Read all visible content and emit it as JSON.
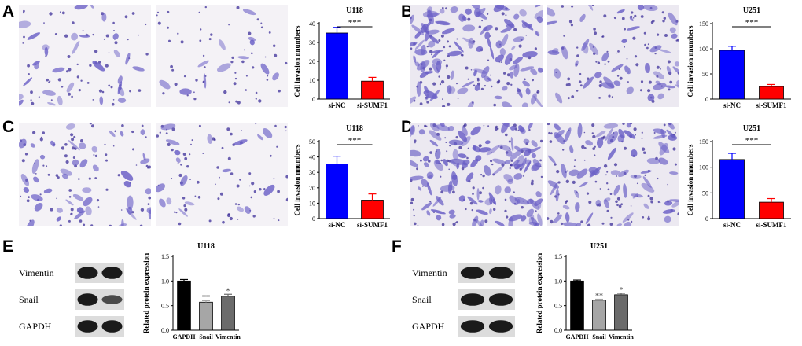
{
  "panels": {
    "A": "A",
    "B": "B",
    "C": "C",
    "D": "D",
    "E": "E",
    "F": "F"
  },
  "invasion_charts": [
    {
      "panel": "A",
      "title": "U118",
      "ylabel": "Cell invasion nnumbers",
      "ylim": [
        0,
        40
      ],
      "ticks": [
        0,
        10,
        20,
        30,
        40
      ],
      "categories": [
        "si-NC",
        "si-SUMF1"
      ],
      "values": [
        35,
        9.5
      ],
      "errors": [
        3,
        2
      ],
      "colors": [
        "#0000ff",
        "#ff0000"
      ],
      "sig": "***"
    },
    {
      "panel": "B",
      "title": "U251",
      "ylabel": "Cell invasion nnumbers",
      "ylim": [
        0,
        150
      ],
      "ticks": [
        0,
        50,
        100,
        150
      ],
      "categories": [
        "si-NC",
        "si-SUMF1"
      ],
      "values": [
        97,
        25
      ],
      "errors": [
        8,
        4
      ],
      "colors": [
        "#0000ff",
        "#ff0000"
      ],
      "sig": "***"
    },
    {
      "panel": "C",
      "title": "U118",
      "ylabel": "Cell invasion nnumbers",
      "ylim": [
        0,
        50
      ],
      "ticks": [
        0,
        10,
        20,
        30,
        40,
        50
      ],
      "categories": [
        "si-NC",
        "si-SUMF1"
      ],
      "values": [
        35.5,
        12
      ],
      "errors": [
        5,
        4
      ],
      "colors": [
        "#0000ff",
        "#ff0000"
      ],
      "sig": "***"
    },
    {
      "panel": "D",
      "title": "U251",
      "ylabel": "Cell invasion nnumbers",
      "ylim": [
        0,
        150
      ],
      "ticks": [
        0,
        50,
        100,
        150
      ],
      "categories": [
        "si-NC",
        "si-SUMF1"
      ],
      "values": [
        115,
        32
      ],
      "errors": [
        12,
        7
      ],
      "colors": [
        "#0000ff",
        "#ff0000"
      ],
      "sig": "***"
    }
  ],
  "protein_charts": [
    {
      "panel": "E",
      "title": "U118",
      "ylabel": "Related protein expression",
      "ylim": [
        0,
        1.5
      ],
      "ticks": [
        "0.0",
        "0.5",
        "1.0",
        "1.5"
      ],
      "categories": [
        "GAPDH",
        "Snail",
        "Vimentin"
      ],
      "values": [
        1.0,
        0.57,
        0.69
      ],
      "errors": [
        0.03,
        0.03,
        0.04
      ],
      "colors": [
        "#000000",
        "#a6a6a6",
        "#6b6b6b"
      ],
      "sigs": [
        "",
        "**",
        "*"
      ]
    },
    {
      "panel": "F",
      "title": "U251",
      "ylabel": "Related protein expression",
      "ylim": [
        0,
        1.5
      ],
      "ticks": [
        "0.0",
        "0.5",
        "1.0",
        "1.5"
      ],
      "categories": [
        "GAPDH",
        "Snail",
        "Vimentin"
      ],
      "values": [
        1.0,
        0.61,
        0.72
      ],
      "errors": [
        0.02,
        0.02,
        0.03
      ],
      "colors": [
        "#000000",
        "#a6a6a6",
        "#6b6b6b"
      ],
      "sigs": [
        "",
        "**",
        "*"
      ]
    }
  ],
  "blots": {
    "E": {
      "labels": [
        "Vimentin",
        "Snail",
        "GAPDH"
      ]
    },
    "F": {
      "labels": [
        "Vimentin",
        "Snail",
        "GAPDH"
      ]
    }
  },
  "colors": {
    "stain": "#6a5fc6",
    "stain_dark": "#3d2f9a"
  }
}
